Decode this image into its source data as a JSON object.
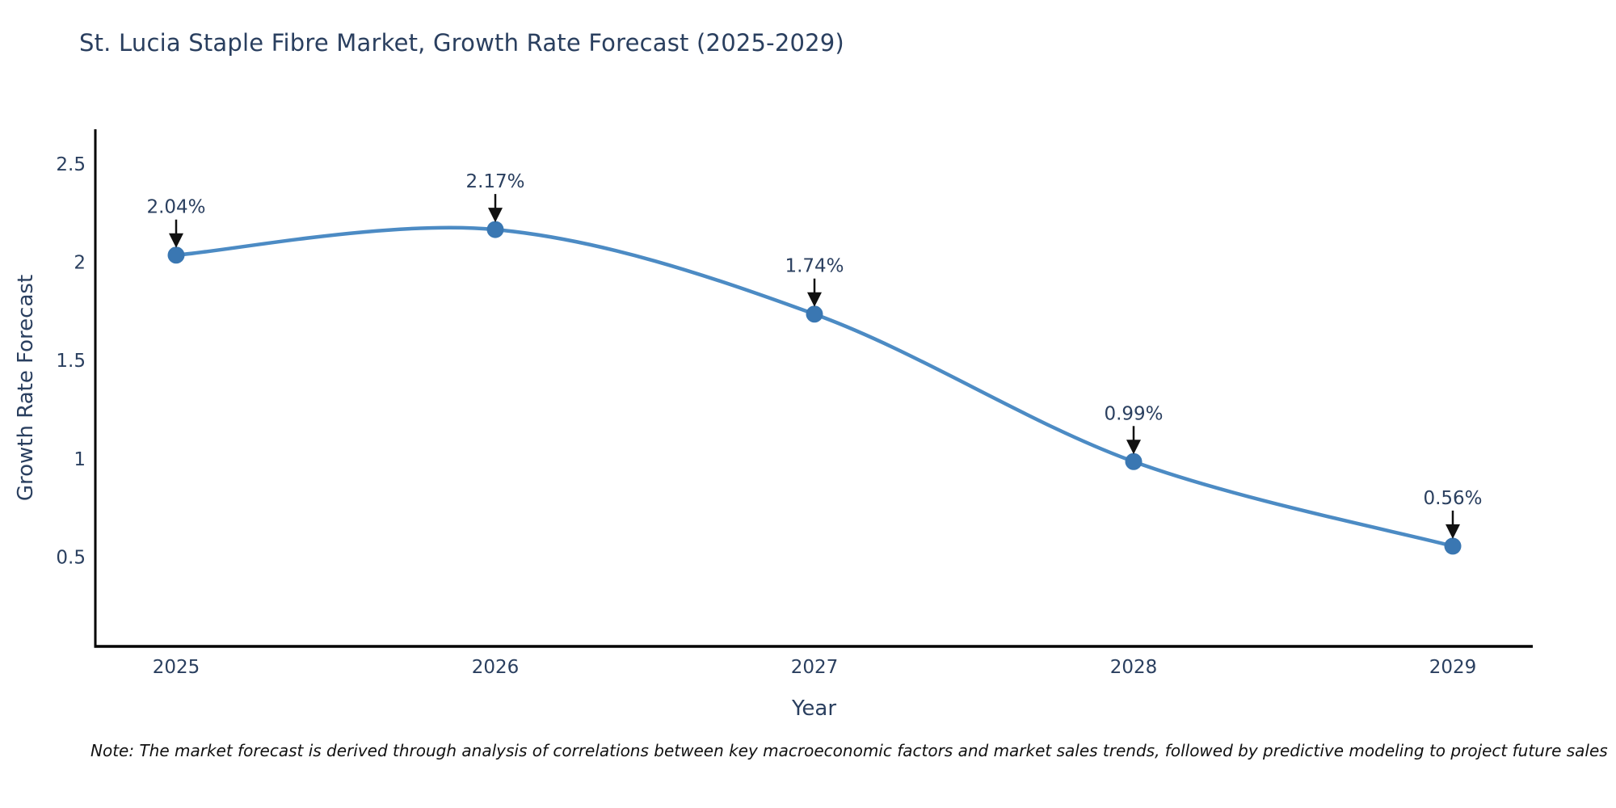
{
  "chart_data": {
    "type": "line",
    "title": "St. Lucia Staple Fibre Market, Growth Rate Forecast (2025-2029)",
    "xlabel": "Year",
    "ylabel": "Growth Rate Forecast",
    "x": [
      2025,
      2026,
      2027,
      2028,
      2029
    ],
    "values": [
      2.04,
      2.17,
      1.74,
      0.99,
      0.56
    ],
    "point_labels": [
      "2.04%",
      "2.17%",
      "1.74%",
      "0.99%",
      "0.56%"
    ],
    "yticks": [
      0.5,
      1,
      1.5,
      2,
      2.5
    ],
    "ylim": [
      0.05,
      2.68
    ],
    "line_shape": "spline",
    "grid": false,
    "legend": false,
    "colors": {
      "line": "#4c8bc4",
      "marker": "#3a77b2",
      "axis": "#000000",
      "text": "#2a3f5f",
      "arrow": "#111111"
    }
  },
  "note": "Note: The market forecast is derived through analysis of correlations between key macroeconomic factors and market sales trends, followed by predictive modeling to project future sales"
}
